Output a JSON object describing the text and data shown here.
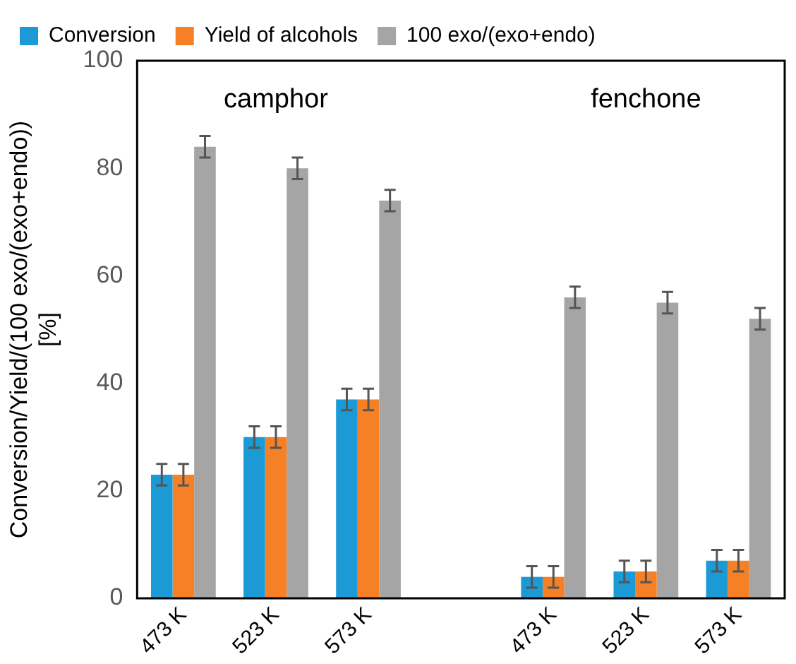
{
  "chart_data": {
    "type": "bar",
    "ylabel": "Conversion/Yield/(100 exo/(exo+endo))\n[%]",
    "categories": [
      "473 K",
      "523 K",
      "573 K",
      null,
      "473 K",
      "523 K",
      "573 K"
    ],
    "series": [
      {
        "name": "Conversion",
        "color": "#1b9ad6",
        "values": [
          23,
          30,
          37,
          null,
          4,
          5,
          7
        ],
        "errors": [
          2,
          2,
          2,
          null,
          2,
          2,
          2
        ]
      },
      {
        "name": "Yield of alcohols",
        "color": "#f58025",
        "values": [
          23,
          30,
          37,
          null,
          4,
          5,
          7
        ],
        "errors": [
          2,
          2,
          2,
          null,
          2,
          2,
          2
        ]
      },
      {
        "name": "100 exo/(exo+endo)",
        "color": "#a5a5a5",
        "values": [
          84,
          80,
          74,
          null,
          56,
          55,
          52
        ],
        "errors": [
          2,
          2,
          2,
          null,
          2,
          2,
          2
        ]
      }
    ],
    "ylim": [
      0,
      100
    ],
    "yticks": [
      0,
      20,
      40,
      60,
      80,
      100
    ],
    "grid": false,
    "legend": "top",
    "annotations": [
      "camphor",
      "fenchone"
    ]
  }
}
